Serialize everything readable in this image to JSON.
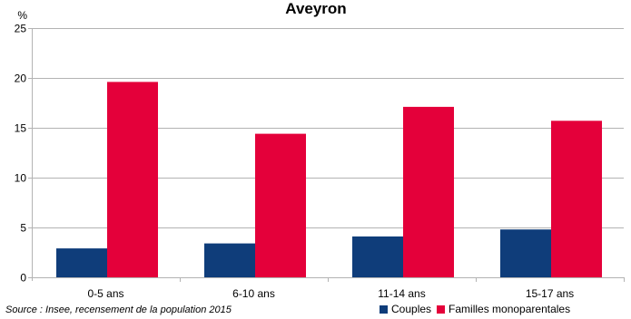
{
  "chart_data": {
    "type": "bar",
    "title": "Aveyron",
    "ylabel": "%",
    "ylim": [
      0,
      25
    ],
    "yticks": [
      0,
      5,
      10,
      15,
      20,
      25
    ],
    "grid": true,
    "legend_position": "bottom-right",
    "categories": [
      "0-5 ans",
      "6-10 ans",
      "11-14 ans",
      "15-17 ans"
    ],
    "series": [
      {
        "name": "Couples",
        "color": "#0f3d7a",
        "values": [
          2.9,
          3.4,
          4.1,
          4.8
        ]
      },
      {
        "name": "Familles monoparentales",
        "color": "#e4003a",
        "values": [
          19.6,
          14.4,
          17.1,
          15.7
        ]
      }
    ]
  },
  "source_text": "Source : Insee, recensement de la population 2015"
}
